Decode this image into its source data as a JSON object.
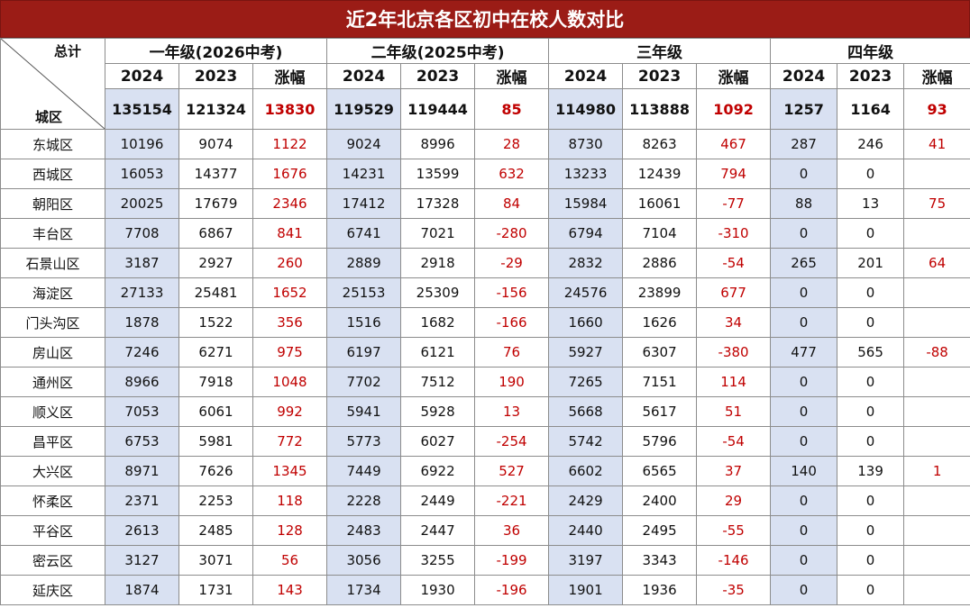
{
  "title": "近2年北京各区初中在校人数对比",
  "chart_data": {
    "type": "table",
    "grade_headers": [
      "一年级(2026中考)",
      "二年级(2025中考)",
      "三年级",
      "四年级"
    ],
    "sub_headers": [
      "2024",
      "2023",
      "涨幅"
    ],
    "corner_top": "总计",
    "corner_bottom": "城区",
    "total": [
      [
        "135154",
        "121324",
        "13830"
      ],
      [
        "119529",
        "119444",
        "85"
      ],
      [
        "114980",
        "113888",
        "1092"
      ],
      [
        "1257",
        "1164",
        "93"
      ]
    ],
    "rows": [
      {
        "district": "东城区",
        "values": [
          [
            "10196",
            "9074",
            "1122"
          ],
          [
            "9024",
            "8996",
            "28"
          ],
          [
            "8730",
            "8263",
            "467"
          ],
          [
            "287",
            "246",
            "41"
          ]
        ]
      },
      {
        "district": "西城区",
        "values": [
          [
            "16053",
            "14377",
            "1676"
          ],
          [
            "14231",
            "13599",
            "632"
          ],
          [
            "13233",
            "12439",
            "794"
          ],
          [
            "0",
            "0",
            ""
          ]
        ]
      },
      {
        "district": "朝阳区",
        "values": [
          [
            "20025",
            "17679",
            "2346"
          ],
          [
            "17412",
            "17328",
            "84"
          ],
          [
            "15984",
            "16061",
            "-77"
          ],
          [
            "88",
            "13",
            "75"
          ]
        ]
      },
      {
        "district": "丰台区",
        "values": [
          [
            "7708",
            "6867",
            "841"
          ],
          [
            "6741",
            "7021",
            "-280"
          ],
          [
            "6794",
            "7104",
            "-310"
          ],
          [
            "0",
            "0",
            ""
          ]
        ]
      },
      {
        "district": "石景山区",
        "values": [
          [
            "3187",
            "2927",
            "260"
          ],
          [
            "2889",
            "2918",
            "-29"
          ],
          [
            "2832",
            "2886",
            "-54"
          ],
          [
            "265",
            "201",
            "64"
          ]
        ]
      },
      {
        "district": "海淀区",
        "values": [
          [
            "27133",
            "25481",
            "1652"
          ],
          [
            "25153",
            "25309",
            "-156"
          ],
          [
            "24576",
            "23899",
            "677"
          ],
          [
            "0",
            "0",
            ""
          ]
        ]
      },
      {
        "district": "门头沟区",
        "values": [
          [
            "1878",
            "1522",
            "356"
          ],
          [
            "1516",
            "1682",
            "-166"
          ],
          [
            "1660",
            "1626",
            "34"
          ],
          [
            "0",
            "0",
            ""
          ]
        ]
      },
      {
        "district": "房山区",
        "values": [
          [
            "7246",
            "6271",
            "975"
          ],
          [
            "6197",
            "6121",
            "76"
          ],
          [
            "5927",
            "6307",
            "-380"
          ],
          [
            "477",
            "565",
            "-88"
          ]
        ]
      },
      {
        "district": "通州区",
        "values": [
          [
            "8966",
            "7918",
            "1048"
          ],
          [
            "7702",
            "7512",
            "190"
          ],
          [
            "7265",
            "7151",
            "114"
          ],
          [
            "0",
            "0",
            ""
          ]
        ]
      },
      {
        "district": "顺义区",
        "values": [
          [
            "7053",
            "6061",
            "992"
          ],
          [
            "5941",
            "5928",
            "13"
          ],
          [
            "5668",
            "5617",
            "51"
          ],
          [
            "0",
            "0",
            ""
          ]
        ]
      },
      {
        "district": "昌平区",
        "values": [
          [
            "6753",
            "5981",
            "772"
          ],
          [
            "5773",
            "6027",
            "-254"
          ],
          [
            "5742",
            "5796",
            "-54"
          ],
          [
            "0",
            "0",
            ""
          ]
        ]
      },
      {
        "district": "大兴区",
        "values": [
          [
            "8971",
            "7626",
            "1345"
          ],
          [
            "7449",
            "6922",
            "527"
          ],
          [
            "6602",
            "6565",
            "37"
          ],
          [
            "140",
            "139",
            "1"
          ]
        ]
      },
      {
        "district": "怀柔区",
        "values": [
          [
            "2371",
            "2253",
            "118"
          ],
          [
            "2228",
            "2449",
            "-221"
          ],
          [
            "2429",
            "2400",
            "29"
          ],
          [
            "0",
            "0",
            ""
          ]
        ]
      },
      {
        "district": "平谷区",
        "values": [
          [
            "2613",
            "2485",
            "128"
          ],
          [
            "2483",
            "2447",
            "36"
          ],
          [
            "2440",
            "2495",
            "-55"
          ],
          [
            "0",
            "0",
            ""
          ]
        ]
      },
      {
        "district": "密云区",
        "values": [
          [
            "3127",
            "3071",
            "56"
          ],
          [
            "3056",
            "3255",
            "-199"
          ],
          [
            "3197",
            "3343",
            "-146"
          ],
          [
            "0",
            "0",
            ""
          ]
        ]
      },
      {
        "district": "延庆区",
        "values": [
          [
            "1874",
            "1731",
            "143"
          ],
          [
            "1734",
            "1930",
            "-196"
          ],
          [
            "1901",
            "1936",
            "-35"
          ],
          [
            "0",
            "0",
            ""
          ]
        ]
      }
    ],
    "colors": {
      "title_bg": "#9b1c16",
      "highlight_col": "#d9e1f2",
      "change_text": "#c00000"
    }
  }
}
